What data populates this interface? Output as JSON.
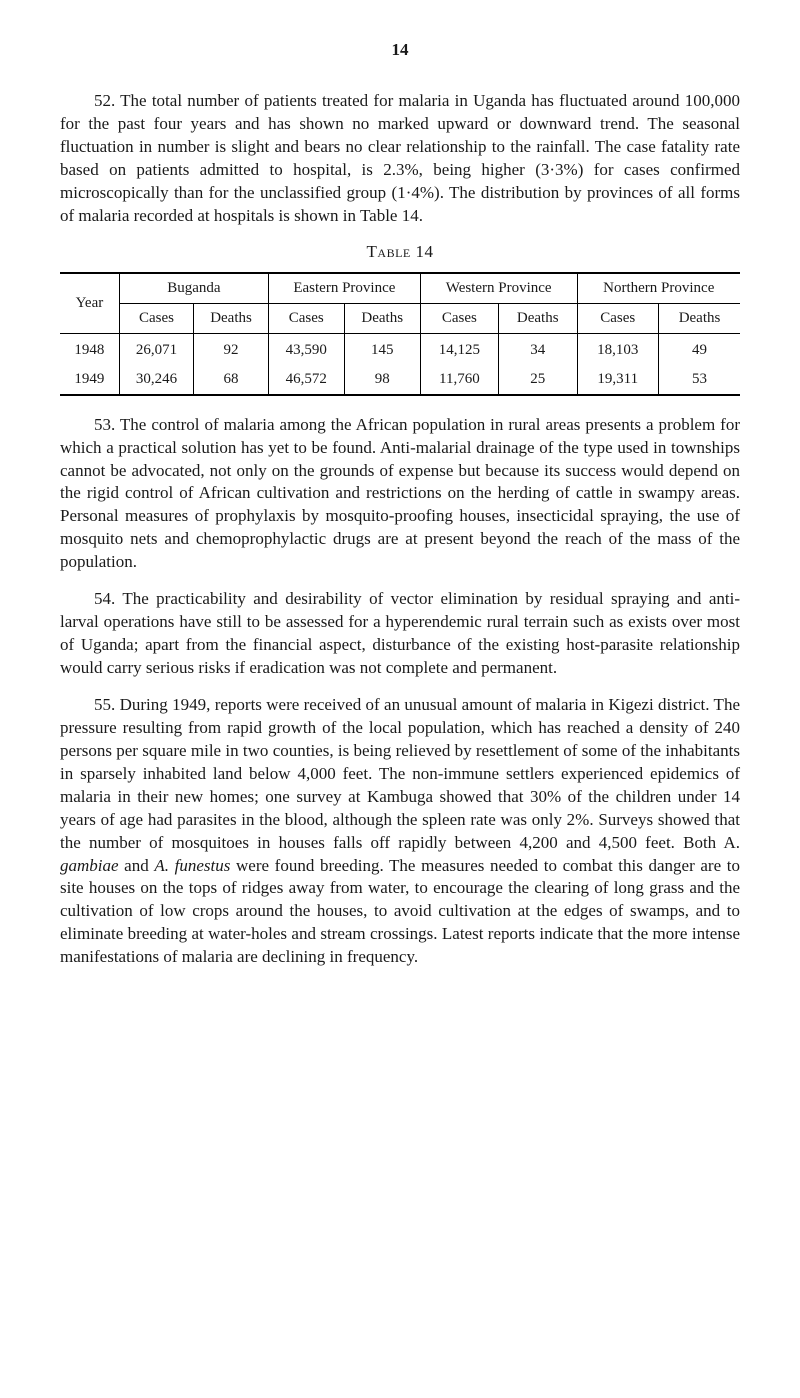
{
  "page_number": "14",
  "paragraphs": {
    "p52": "52.  The total number of patients treated for malaria in Uganda has fluctuated around 100,000 for the past four years and has shown no marked upward or downward trend. The seasonal fluctuation in number is slight and bears no clear relationship to the rainfall. The case fatality rate based on patients admitted to hospital, is 2.3%, being higher (3·3%) for cases confirmed microscopically than for the unclassified group (1·4%). The distribution by provinces of all forms of malaria recorded at hospitals is shown in Table 14.",
    "p53": "53.  The control of malaria among the African population in rural areas presents a problem for which a practical solution has yet to be found. Anti-malarial drainage of the type used in townships cannot be advocated, not only on the grounds of expense but because its success would depend on the rigid control of African cultivation and restrictions on the herding of cattle in swampy areas. Personal measures of prophylaxis by mosquito-proofing houses, insecticidal spraying, the use of mosquito nets and chemoprophylactic drugs are at present beyond the reach of the mass of the population.",
    "p54": "54.  The practicability and desirability of vector elimination by residual spraying and anti-larval operations have still to be assessed for a hyperendemic rural terrain such as exists over most of Uganda; apart from the financial aspect, disturbance of the existing host-parasite relationship would carry serious risks if eradication was not complete and permanent.",
    "p55a": "55.  During 1949, reports were received of an unusual amount of malaria in Kigezi district. The pressure resulting from rapid growth of the local population, which has reached a density of 240 persons per square mile in two counties, is being relieved by resettlement of some of the inhabitants in sparsely inhabited land below 4,000 feet. The non-immune settlers experienced epidemics of malaria in their new homes; one survey at Kambuga showed that 30% of the children under 14 years of age had parasites in the blood, although the spleen rate was only 2%. Surveys showed that the number of mosquitoes in houses falls off rapidly between 4,200 and 4,500 feet. Both A. ",
    "p55b": " and ",
    "p55c": " were found breeding. The measures needed to combat this danger are to site houses on the tops of ridges away from water, to encourage the clearing of long grass and the cultivation of low crops around the houses, to avoid cultivation at the edges of swamps, and to eliminate breeding at water-holes and stream crossings. Latest reports indicate that the more intense manifestations of malaria are declining in frequency.",
    "italic_gambiae": "gambiae",
    "italic_funestus": "A. funestus"
  },
  "table": {
    "caption": "Table 14",
    "year_label": "Year",
    "groups": [
      {
        "label": "Buganda"
      },
      {
        "label": "Eastern Province"
      },
      {
        "label": "Western Province"
      },
      {
        "label": "Northern Province"
      }
    ],
    "sub_cases": "Cases",
    "sub_deaths": "Deaths",
    "rows": [
      {
        "year": "1948",
        "cells": [
          "26,071",
          "92",
          "43,590",
          "145",
          "14,125",
          "34",
          "18,103",
          "49"
        ]
      },
      {
        "year": "1949",
        "cells": [
          "30,246",
          "68",
          "46,572",
          "98",
          "11,760",
          "25",
          "19,311",
          "53"
        ]
      }
    ]
  }
}
